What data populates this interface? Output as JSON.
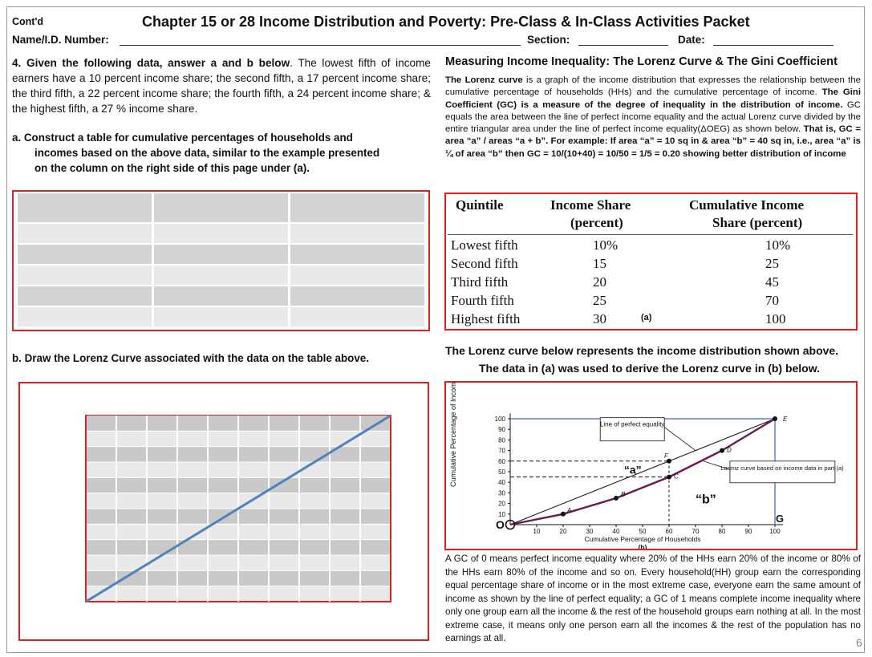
{
  "header": {
    "contd": "Cont'd",
    "title": "Chapter 15 or 28  Income Distribution and Poverty:  Pre-Class & In-Class Activities Packet",
    "name_label": "Name/I.D. Number:",
    "section_label": "Section:",
    "date_label": "Date:"
  },
  "left": {
    "q4_bold": "4. Given the following data,  answer a and b below",
    "q4_text": ". The lowest fifth of income earners have a 10 percent income share; the second fifth, a 17 percent income share; the third fifth, a 22 percent income share; the fourth fifth, a 24 percent income share; & the highest fifth, a 27 % income share.",
    "qa_line1": "a.  Construct a table for cumulative percentages of households and",
    "qa_line2": "incomes based on the above data, similar to the example presented",
    "qa_line3": "on  the column on the right  side of this page under (a).",
    "qb": "b.  Draw the Lorenz Curve associated with the data on the table above."
  },
  "right": {
    "heading": "Measuring Income Inequality: The Lorenz Curve & The  Gini Coefficient",
    "p_lorenz_bold": "The Lorenz curve",
    "p_lorenz_rest": " is a graph of the income distribution that expresses the relationship between the cumulative percentage of households (HHs) and the cumulative percentage of income.",
    "p_gini_bold": " The Gini Coefficient (GC) is a measure of the degree of inequality in the distribution of income.",
    "p_gini_rest": " GC equals the area between the line of perfect income equality and the actual Lorenz curve  divided by the entire triangular area under the line of perfect income equality(ΔOEG) as shown below.",
    "p_example_bold": " That  is,  GC =  area “a” / areas “a + b”.  For example: If area “a” = 10 sq in & area “b” =  40 sq in, i.e., area “a” is ¼ of area “b” then GC = 10/(10+40) = 10/50 = 1/5 = 0.20  showing better distribution of income",
    "table": {
      "headers": [
        "Quintile",
        "Income Share",
        "(percent)",
        "Cumulative Income",
        "Share  (percent)"
      ],
      "rows": [
        [
          "Lowest fifth",
          "10%",
          "10%"
        ],
        [
          "Second fifth",
          "15",
          "25"
        ],
        [
          "Third fifth",
          "20",
          "45"
        ],
        [
          "Fourth fifth",
          "25",
          "70"
        ],
        [
          "Highest fifth",
          "30",
          "100"
        ]
      ],
      "tag": "(a)"
    },
    "curve_caption1": "The Lorenz curve below represents the income distribution shown above.",
    "curve_caption2": "The data in (a)  was  used to derive the Lorenz curve in (b) below.",
    "chart": {
      "ylabel": "Cumulative Percentage of Income",
      "xlabel": "Cumulative Percentage of Households",
      "tag": "(b)",
      "yticks": [
        "10",
        "20",
        "30",
        "40",
        "50",
        "60",
        "70",
        "80",
        "90",
        "100"
      ],
      "xticks": [
        "10",
        "20",
        "30",
        "40",
        "50",
        "60",
        "70",
        "80",
        "90",
        "100"
      ],
      "equality_label": "Line of perfect equality",
      "lorenz_label": "Lorenz curve based on income data in part (a)",
      "area_a": "“a”",
      "area_b": "“b”",
      "pt_o": "O",
      "pt_g": "G",
      "pt_e": "E",
      "pt_a": "A",
      "pt_b": "B",
      "pt_c": "C",
      "pt_d": "D",
      "pt_f": "F"
    },
    "bottom_text": "A GC of 0 means perfect income equality where 20% of the HHs earn 20% of the income or 80% of the HHs earn 80% of the income and so on. Every household(HH) group earn the corresponding equal percentage share of income or in the most extreme case, everyone earn the same amount of income as shown by the line of perfect equality; a GC of 1 means complete income inequality where  only one group earn all the income & the rest of the household groups earn nothing at all. In the most extreme case, it means only one person earn all the incomes & the rest of the population has no earnings at all.",
    "page_number": "6"
  },
  "chart_data": {
    "type": "line",
    "xlabel": "Cumulative Percentage of Households",
    "ylabel": "Cumulative Percentage of Income",
    "xlim": [
      0,
      100
    ],
    "ylim": [
      0,
      100
    ],
    "series": [
      {
        "name": "Line of perfect equality",
        "x": [
          0,
          100
        ],
        "y": [
          0,
          100
        ]
      },
      {
        "name": "Lorenz curve",
        "x": [
          0,
          20,
          40,
          60,
          80,
          100
        ],
        "y": [
          0,
          10,
          25,
          45,
          70,
          100
        ]
      }
    ]
  }
}
